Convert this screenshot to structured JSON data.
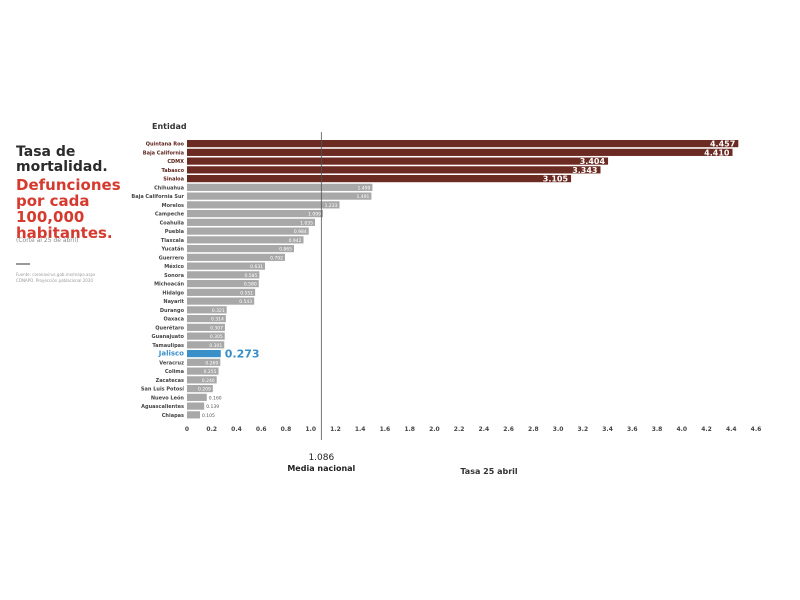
{
  "heading": {
    "line1": "Tasa de",
    "line2": "mortalidad.",
    "red1": "Defunciones",
    "red2": "por cada",
    "red3": "100,000",
    "red4": "habitantes.",
    "note": "(Corte al 25 de abril)",
    "source1": "Fuente: coronavirus.gob.mx/mapa.aspx",
    "source2": "CONAPO. Proyección poblacional 2020"
  },
  "colors": {
    "highlight_bar": "#6b2a22",
    "regular_bar": "#a8a8a8",
    "jalisco_bar": "#3a8fc9",
    "red_text": "#d63a2f"
  },
  "chart_data": {
    "type": "bar",
    "orientation": "horizontal",
    "category_header": "Entidad",
    "xlabel": "Tasa 25 abril",
    "xlim": [
      0,
      4.6
    ],
    "x_ticks": [
      "0",
      "0.2",
      "0.4",
      "0.6",
      "0.8",
      "1.0",
      "1.2",
      "1.4",
      "1.6",
      "1.8",
      "2.0",
      "2.2",
      "2.4",
      "2.6",
      "2.8",
      "3.0",
      "3.2",
      "3.4",
      "3.6",
      "3.8",
      "4.0",
      "4.2",
      "4.4",
      "4.6"
    ],
    "reference_line": {
      "value": 1.086,
      "value_label": "1.086",
      "label": "Media nacional"
    },
    "categories": [
      "Quintana Roo",
      "Baja California",
      "CDMX",
      "Tabasco",
      "Sinaloa",
      "Chihuahua",
      "Baja California Sur",
      "Morelos",
      "Campeche",
      "Coahuila",
      "Puebla",
      "Tlaxcala",
      "Yucatán",
      "Guerrero",
      "México",
      "Sonora",
      "Michoacán",
      "Hidalgo",
      "Nayarit",
      "Durango",
      "Oaxaca",
      "Querétaro",
      "Guanajuato",
      "Tamaulipas",
      "Jalisco",
      "Veracruz",
      "Colima",
      "Zacatecas",
      "San Luis Potosí",
      "Nuevo León",
      "Aguascalientes",
      "Chiapas"
    ],
    "values": [
      4.457,
      4.41,
      3.404,
      3.343,
      3.105,
      1.499,
      1.491,
      1.233,
      1.099,
      1.035,
      0.984,
      0.942,
      0.865,
      0.792,
      0.631,
      0.585,
      0.58,
      0.551,
      0.543,
      0.321,
      0.314,
      0.307,
      0.305,
      0.301,
      0.273,
      0.269,
      0.255,
      0.24,
      0.209,
      0.16,
      0.139,
      0.105
    ],
    "value_labels": [
      "4.457",
      "4.410",
      "3.404",
      "3.343",
      "3.105",
      "1.499",
      "1.491",
      "1.233",
      "1.099",
      "1.035",
      "0.984",
      "0.942",
      "0.865",
      "0.792",
      "0.631",
      "0.585",
      "0.580",
      "0.551",
      "0.543",
      "0.321",
      "0.314",
      "0.307",
      "0.305",
      "0.301",
      "0.273",
      "0.269",
      "0.255",
      "0.240",
      "0.209",
      "0.160",
      "0.139",
      "0.105"
    ],
    "highlighted": [
      "Quintana Roo",
      "Baja California",
      "CDMX",
      "Tabasco",
      "Sinaloa"
    ],
    "featured": "Jalisco"
  }
}
